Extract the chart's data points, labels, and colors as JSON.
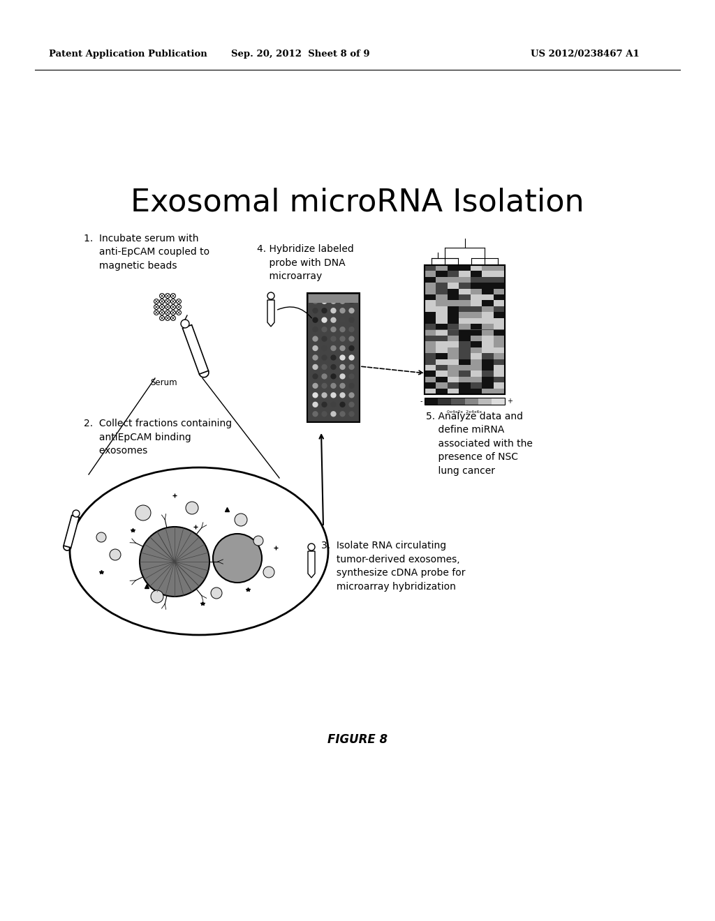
{
  "title": "Exosomal microRNA Isolation",
  "header_left": "Patent Application Publication",
  "header_mid": "Sep. 20, 2012  Sheet 8 of 9",
  "header_right": "US 2012/0238467 A1",
  "footer": "FIGURE 8",
  "step1_text": "1.  Incubate serum with\n     anti-EpCAM coupled to\n     magnetic beads",
  "step2_text": "2.  Collect fractions containing\n     antiEpCAM binding\n     exosomes",
  "step3_text": "3.  Isolate RNA circulating\n     tumor-derived exosomes,\n     synthesize cDNA probe for\n     microarray hybridization",
  "step4_text": "4. Hybridize labeled\n    probe with DNA\n    microarray",
  "step5_text": "5. Analyze data and\n    define miRNA\n    associated with the\n    presence of NSC\n    lung cancer",
  "serum_label": "Serum",
  "bg_color": "#ffffff",
  "text_color": "#000000"
}
